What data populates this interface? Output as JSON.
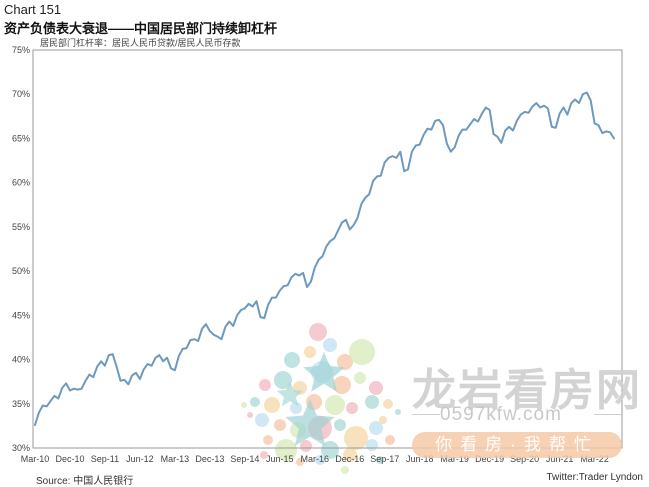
{
  "header": {
    "chart_label": "Chart 151",
    "title": "资产负债表大衰退——中国居民部门持续卸杠杆"
  },
  "chart_data": {
    "type": "line",
    "title": "资产负债表大衰退——中国居民部门持续卸杠杆",
    "series_label": "居民部门杠杆率：居民人民币贷款/居民人民币存款",
    "ylim": [
      30,
      75
    ],
    "y_ticks": [
      "30%",
      "35%",
      "40%",
      "45%",
      "50%",
      "55%",
      "60%",
      "65%",
      "70%",
      "75%"
    ],
    "x_ticks": [
      "Mar-10",
      "Dec-10",
      "Sep-11",
      "Jun-12",
      "Mar-13",
      "Dec-13",
      "Sep-14",
      "Jun-15",
      "Mar-16",
      "Dec-16",
      "Sep-17",
      "Jun-18",
      "Mar-19",
      "Dec-19",
      "Sep-20",
      "Jun-21",
      "Mar-22"
    ],
    "x_start": "2010-03",
    "x_end": "2022-08",
    "values": [
      32.6,
      34.0,
      34.8,
      34.7,
      35.3,
      35.9,
      35.6,
      36.8,
      37.3,
      36.5,
      36.7,
      36.6,
      36.7,
      37.6,
      38.3,
      38.0,
      39.2,
      39.8,
      39.3,
      40.5,
      40.6,
      39.2,
      37.6,
      37.7,
      37.2,
      38.2,
      38.5,
      37.8,
      38.9,
      39.5,
      39.3,
      40.2,
      40.5,
      39.8,
      40.2,
      39.0,
      38.8,
      40.4,
      41.2,
      41.3,
      42.2,
      42.3,
      42.1,
      43.5,
      44.0,
      43.2,
      42.8,
      42.6,
      42.3,
      43.7,
      44.3,
      43.8,
      45.0,
      45.6,
      45.8,
      46.3,
      46.0,
      46.6,
      44.8,
      44.7,
      46.2,
      47.0,
      47.0,
      47.8,
      48.3,
      48.4,
      49.3,
      49.7,
      49.5,
      49.8,
      48.2,
      48.8,
      50.4,
      51.3,
      51.7,
      52.8,
      53.4,
      53.7,
      54.6,
      55.5,
      55.8,
      54.7,
      55.2,
      56.0,
      57.6,
      58.3,
      58.7,
      60.2,
      60.7,
      60.8,
      62.3,
      62.8,
      63.0,
      62.8,
      63.5,
      61.3,
      61.5,
      63.5,
      64.2,
      64.3,
      65.4,
      66.1,
      66.0,
      67.0,
      67.1,
      66.5,
      64.4,
      63.5,
      64.0,
      65.3,
      66.0,
      66.0,
      66.6,
      67.2,
      66.9,
      67.8,
      68.5,
      68.2,
      65.5,
      65.2,
      64.5,
      65.9,
      66.3,
      65.9,
      67.0,
      67.7,
      68.0,
      67.9,
      68.6,
      69.0,
      68.5,
      68.7,
      68.4,
      66.3,
      66.2,
      67.8,
      68.5,
      67.7,
      69.0,
      69.4,
      69.0,
      70.0,
      70.2,
      69.3,
      66.7,
      66.5,
      65.6,
      65.8,
      65.7,
      65.0
    ],
    "line_color": "#6e99bd",
    "grid": false
  },
  "footer": {
    "source": "Source: 中国人民银行",
    "credit": "Twitter:Trader Lyndon"
  },
  "watermark": {
    "title": "龙岩看房网",
    "url": "0597kfw.com",
    "slogan": "你看房·我帮忙"
  },
  "colors": {
    "accent": "#6e99bd",
    "watermark_slogan_bg": "#f6c9a6"
  }
}
